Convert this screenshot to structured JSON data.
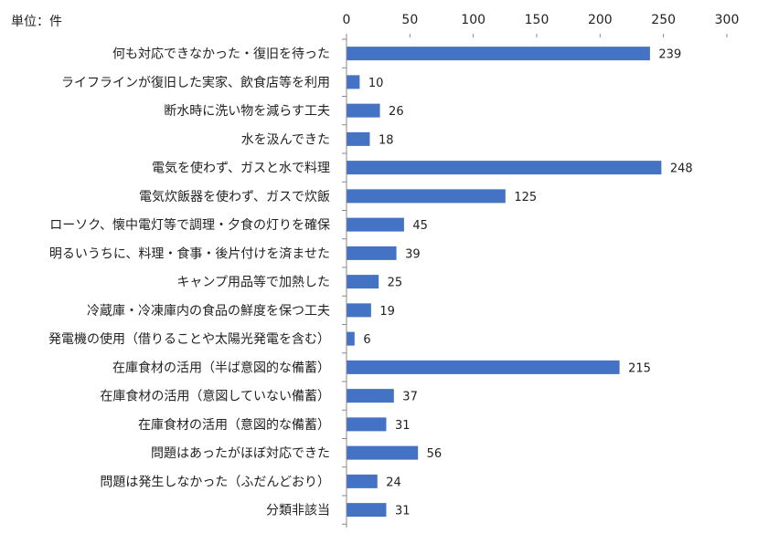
{
  "unit_label": "単位：件",
  "chart_data": {
    "type": "bar",
    "orientation": "horizontal",
    "title": "",
    "xlabel": "",
    "ylabel": "",
    "xlim": [
      0,
      300
    ],
    "xticks": [
      0,
      50,
      100,
      150,
      200,
      250,
      300
    ],
    "grid": false,
    "legend": "none",
    "bar_color": "#4472C4",
    "categories": [
      "何も対応できなかった・復旧を待った",
      "ライフラインが復旧した実家、飲食店等を利用",
      "断水時に洗い物を減らす工夫",
      "水を汲んできた",
      "電気を使わず、ガスと水で料理",
      "電気炊飯器を使わず、ガスで炊飯",
      "ローソク、懐中電灯等で調理・夕食の灯りを確保",
      "明るいうちに、料理・食事・後片付けを済ませた",
      "キャンプ用品等で加熱した",
      "冷蔵庫・冷凍庫内の食品の鮮度を保つ工夫",
      "発電機の使用（借りることや太陽光発電を含む）",
      "在庫食材の活用（半ば意図的な備蓄）",
      "在庫食材の活用（意図していない備蓄）",
      "在庫食材の活用（意図的な備蓄）",
      "問題はあったがほぼ対応できた",
      "問題は発生しなかった（ふだんどおり）",
      "分類非該当"
    ],
    "values": [
      239,
      10,
      26,
      18,
      248,
      125,
      45,
      39,
      25,
      19,
      6,
      215,
      37,
      31,
      56,
      24,
      31
    ]
  }
}
